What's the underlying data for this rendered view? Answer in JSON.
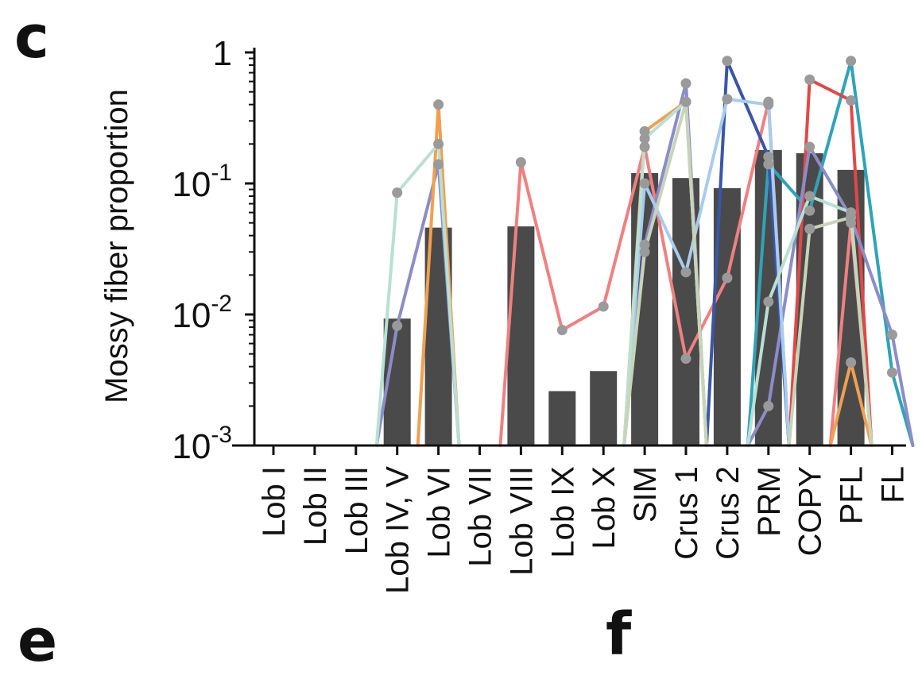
{
  "panel_label": "c",
  "bottom_partial_labels": [
    "e",
    "f"
  ],
  "chart_data": {
    "type": "bar",
    "scale": "log",
    "ylim": [
      0.001,
      1
    ],
    "ylabel": "Mossy fiber proportion",
    "y_ticks": [
      {
        "value": 1,
        "base": "1",
        "exp": ""
      },
      {
        "value": 0.1,
        "base": "10",
        "exp": "-1"
      },
      {
        "value": 0.01,
        "base": "10",
        "exp": "-2"
      },
      {
        "value": 0.001,
        "base": "10",
        "exp": "-3"
      }
    ],
    "categories": [
      "Lob I",
      "Lob II",
      "Lob III",
      "Lob IV, V",
      "Lob VI",
      "Lob VII",
      "Lob VIII",
      "Lob IX",
      "Lob X",
      "SIM",
      "Crus 1",
      "Crus 2",
      "PRM",
      "COPY",
      "PFL",
      "FL"
    ],
    "bar_color": "#4a4a4a",
    "bar_values": [
      null,
      null,
      null,
      0.0093,
      0.046,
      null,
      0.047,
      0.0026,
      0.0037,
      0.12,
      0.11,
      0.092,
      0.18,
      0.17,
      0.127,
      null
    ],
    "point_color": "#9a9a9a",
    "series": [
      {
        "color": "#f08080",
        "values": [
          null,
          null,
          null,
          null,
          null,
          null,
          0.145,
          0.0076,
          0.0115,
          0.19,
          0.0046,
          0.019,
          0.42,
          null,
          0.05,
          null
        ]
      },
      {
        "color": "#2fa3b8",
        "values": [
          null,
          null,
          null,
          null,
          null,
          null,
          null,
          null,
          null,
          null,
          null,
          null,
          0.14,
          0.062,
          0.86,
          0.0036
        ]
      },
      {
        "color": "#e04848",
        "values": [
          null,
          null,
          null,
          null,
          null,
          null,
          null,
          null,
          null,
          null,
          null,
          null,
          null,
          0.62,
          0.43,
          null
        ]
      },
      {
        "color": "#3a56a8",
        "values": [
          null,
          null,
          null,
          null,
          null,
          null,
          null,
          null,
          null,
          null,
          null,
          0.86,
          0.16,
          null,
          null,
          null
        ]
      },
      {
        "color": "#8c8cc8",
        "values": [
          null,
          null,
          null,
          0.0082,
          0.14,
          null,
          null,
          null,
          null,
          0.034,
          0.58,
          null,
          0.002,
          0.19,
          0.055,
          0.007
        ]
      },
      {
        "color": "#a8ccee",
        "values": [
          null,
          null,
          null,
          null,
          null,
          null,
          null,
          null,
          null,
          0.1,
          0.021,
          0.44,
          0.4,
          null,
          null,
          null
        ]
      },
      {
        "color": "#f0a050",
        "values": [
          null,
          null,
          null,
          null,
          0.4,
          null,
          null,
          null,
          null,
          0.25,
          0.42,
          null,
          null,
          null,
          0.0043,
          null
        ]
      },
      {
        "color": "#b8e0d4",
        "values": [
          null,
          null,
          null,
          0.085,
          0.2,
          null,
          null,
          null,
          null,
          0.22,
          0.42,
          null,
          0.0125,
          0.08,
          0.06,
          null
        ]
      },
      {
        "color": "#c8d4b8",
        "values": [
          null,
          null,
          null,
          null,
          null,
          null,
          null,
          null,
          null,
          0.03,
          0.42,
          null,
          null,
          0.045,
          0.055,
          null
        ]
      }
    ]
  }
}
